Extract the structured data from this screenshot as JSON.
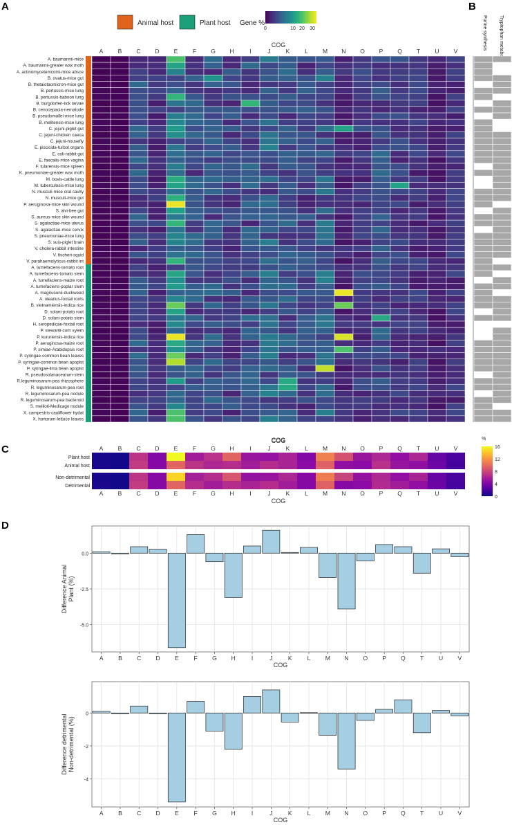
{
  "panel_labels": {
    "a": "A",
    "b": "B",
    "c": "C",
    "d": "D"
  },
  "legend": {
    "animal_host": "Animal host",
    "plant_host": "Plant host",
    "animal_color": "#e0641a",
    "plant_color": "#1ba07b",
    "gene_pct_title": "Gene %",
    "gene_ticks": [
      "0",
      "10",
      "20",
      "30"
    ]
  },
  "panel_b_columns": [
    "Purine synthesis",
    "Tryptophan metabolism"
  ],
  "chart_data": [
    {
      "id": "A",
      "type": "heatmap",
      "xlabel": "COG",
      "legend_title": "Gene %",
      "colorscale": "viridis",
      "crange": [
        0,
        35
      ],
      "categories": [
        "A",
        "B",
        "C",
        "D",
        "E",
        "F",
        "G",
        "H",
        "I",
        "J",
        "K",
        "L",
        "M",
        "N",
        "O",
        "P",
        "Q",
        "T",
        "U",
        "V"
      ],
      "rows": [
        "A. baumannii-mice",
        "A. baumannii-greater wax moth",
        "A. actinomycetemcomi-mice absce",
        "B. ovatus-mice gut",
        "B. thetaiotaomicron-mice gut",
        "B. pertussis-mice lung",
        "B. pertussis-baboon lung",
        "B. burgdorferi-tick larvae",
        "B. cenocepacia-nematode",
        "B. pseudomallei-mice lung",
        "B. melitensis-mice lung",
        "C. jejuni-piglet gut",
        "C. jejuni-chicken caeca",
        "C. jejuni-housefly",
        "E. piscicida-turbot organs",
        "E. coli-rabbit gut",
        "E. faecalis-mice vagina",
        "F. tularensis-mice spleen",
        "K. pneumoniae-greater wax moth",
        "M. bovis-cattle lung",
        "M. tuberculosis-mice lung",
        "N. musculi-mice oral cavity",
        "N. musculi-mice gut",
        "P. aeruginosa-mice skin wound",
        "S. alvi-bee gut",
        "S. aureus-mice skin wound",
        "S. agalactiae-mice uterus",
        "S. agalactiae-mice cervix",
        "S. pneumoniae-mice lung",
        "S. suis-piglet brain",
        "V. cholera-rabbit intestine",
        "V. fischeri-squid",
        "V. parahaemolyticus-rabbit int",
        "A. tumefaciens-tomato root",
        "A. tumefaciens-tomato stem",
        "A. tumefaciens-maize root",
        "A. tumefaciens-poplar stem",
        "A. magnusonii-duckweed",
        "A. olearius-foxtail roots",
        "B. vietnamiensis-indica rice",
        "D. solani-potato root",
        "D. solani-potato stem",
        "H. seropedicae-foxtail root",
        "P. stewartii-corn xylem",
        "P. kururiensis-indica rice",
        "P. aeruginosa-maize root",
        "P. simiae-Arabidopsis root",
        "P. syringae-common bean leaves",
        "P. syringae-common bean apoplst",
        "P. syringae-lima bean apoplst",
        "R. pseudosolanacearum-stem",
        "R.leguminosarum-pea rhizosphere",
        "R. leguminosarum-pea root",
        "R. leguminosarum-pea nodule",
        "R. leguminosarum-pea bacteroid",
        "S. meliloti-Medicago nodule",
        "X. campestris-cauliflower hydat",
        "X. hortorum-lettuce leaves"
      ],
      "row_groups": [
        {
          "name": "Animal host",
          "count": 33
        },
        {
          "name": "Plant host",
          "count": 25
        }
      ],
      "base_profile": [
        0.5,
        0.3,
        8,
        5,
        15,
        8,
        8,
        7,
        8,
        10,
        8,
        7,
        10,
        4,
        6,
        8,
        6,
        5,
        3,
        5
      ],
      "highlights": [
        {
          "row": "P. aeruginosa-mice skin wound",
          "col": "E",
          "value": 34
        },
        {
          "row": "P. kururiensis-indica rice",
          "col": "E",
          "value": 34
        },
        {
          "row": "P. kururiensis-indica rice",
          "col": "N",
          "value": 33
        },
        {
          "row": "A. magnusonii-duckweed",
          "col": "N",
          "value": 34
        },
        {
          "row": "P. syringae-common bean apoplst",
          "col": "E",
          "value": 31
        },
        {
          "row": "P. syringae-lima bean apoplst",
          "col": "M",
          "value": 32
        },
        {
          "row": "B. vietnamiensis-indica rice",
          "col": "E",
          "value": 27
        },
        {
          "row": "B. vietnamiensis-indica rice",
          "col": "N",
          "value": 27
        },
        {
          "row": "A. baumannii-mice",
          "col": "E",
          "value": 25
        },
        {
          "row": "P. syringae-common bean leaves",
          "col": "E",
          "value": 27
        },
        {
          "row": "X. campestris-cauliflower hydat",
          "col": "E",
          "value": 25
        },
        {
          "row": "X. hortorum-lettuce leaves",
          "col": "E",
          "value": 25
        },
        {
          "row": "P. simiae-Arabidopsis root",
          "col": "N",
          "value": 25
        },
        {
          "row": "B. burgdorferi-tick larvae",
          "col": "I",
          "value": 23
        },
        {
          "row": "D. solani-potato stem",
          "col": "P",
          "value": 21
        },
        {
          "row": "R.leguminosarum-pea rhizosphere",
          "col": "K",
          "value": 21
        },
        {
          "row": "R. leguminosarum-pea root",
          "col": "K",
          "value": 21
        },
        {
          "row": "C. jejuni-piglet gut",
          "col": "N",
          "value": 20
        },
        {
          "row": "M. tuberculosis-mice lung",
          "col": "Q",
          "value": 20
        },
        {
          "row": "B. ovatus-mice gut",
          "col": "G",
          "value": 18
        }
      ]
    },
    {
      "id": "C",
      "type": "heatmap",
      "xlabel": "COG",
      "legend_title": "%",
      "colorscale": "plasma",
      "crange": [
        0,
        16
      ],
      "legend_ticks": [
        0,
        4,
        8,
        12,
        16
      ],
      "categories": [
        "A",
        "B",
        "C",
        "D",
        "E",
        "F",
        "G",
        "H",
        "I",
        "J",
        "K",
        "L",
        "M",
        "N",
        "O",
        "P",
        "Q",
        "T",
        "U",
        "V"
      ],
      "rows": [
        "Plant host",
        "Animal host",
        "Non-detrimental",
        "Detrimental"
      ],
      "values": [
        [
          0.3,
          0.2,
          7.0,
          4.2,
          16.0,
          5.6,
          6.8,
          9.6,
          5.2,
          5.0,
          6.0,
          4.2,
          11.0,
          8.6,
          5.2,
          6.2,
          4.8,
          6.2,
          3.0,
          2.0
        ],
        [
          0.4,
          0.2,
          7.4,
          4.4,
          9.6,
          7.0,
          6.2,
          6.6,
          5.6,
          6.6,
          6.0,
          4.6,
          9.4,
          4.8,
          4.6,
          6.8,
          5.2,
          4.8,
          3.3,
          1.8
        ],
        [
          0.3,
          0.2,
          7.0,
          4.3,
          14.6,
          5.8,
          6.6,
          8.8,
          5.0,
          5.2,
          6.2,
          4.4,
          10.8,
          7.8,
          5.0,
          6.2,
          4.8,
          6.0,
          3.0,
          2.0
        ],
        [
          0.4,
          0.2,
          7.4,
          4.3,
          9.6,
          6.6,
          5.6,
          6.6,
          6.0,
          6.6,
          5.6,
          4.4,
          9.4,
          4.4,
          4.6,
          6.4,
          5.6,
          4.8,
          3.2,
          1.8
        ]
      ]
    },
    {
      "id": "D1",
      "type": "bar",
      "categories": [
        "A",
        "B",
        "C",
        "D",
        "E",
        "F",
        "G",
        "H",
        "I",
        "J",
        "K",
        "L",
        "M",
        "N",
        "O",
        "P",
        "Q",
        "T",
        "U",
        "V"
      ],
      "values": [
        0.1,
        -0.05,
        0.45,
        0.28,
        -6.6,
        1.3,
        -0.6,
        -3.1,
        0.5,
        1.6,
        0.05,
        0.4,
        -1.7,
        -3.9,
        -0.55,
        0.6,
        0.45,
        -1.4,
        0.3,
        -0.25
      ],
      "xlabel": "COG",
      "ylabel": "Difference Animal Plant (%)",
      "ylabel_lines": [
        "Difference Animal",
        "Plant (%)"
      ],
      "ylim": [
        -6.9,
        1.9
      ],
      "yticks": [
        0.0,
        -2.5,
        -5.0
      ],
      "ytick_labels": [
        "0.0",
        "-2.5",
        "-5.0"
      ],
      "bar_color": "#a6cee3"
    },
    {
      "id": "D2",
      "type": "bar",
      "categories": [
        "A",
        "B",
        "C",
        "D",
        "E",
        "F",
        "G",
        "H",
        "I",
        "J",
        "K",
        "L",
        "M",
        "N",
        "O",
        "P",
        "Q",
        "T",
        "U",
        "V"
      ],
      "values": [
        0.1,
        -0.05,
        0.42,
        -0.05,
        -5.4,
        0.7,
        -1.1,
        -2.2,
        1.0,
        1.4,
        -0.55,
        0.02,
        -1.35,
        -3.4,
        -0.45,
        0.22,
        0.8,
        -1.2,
        0.15,
        -0.18
      ],
      "xlabel": "COG",
      "ylabel": "Difference detrimental Non-detrimental (%)",
      "ylabel_lines": [
        "Difference detrimental",
        "Non-detrimental (%)"
      ],
      "ylim": [
        -5.7,
        1.9
      ],
      "yticks": [
        0,
        -2,
        -4
      ],
      "ytick_labels": [
        "0",
        "-2",
        "-4"
      ],
      "bar_color": "#a6cee3"
    }
  ]
}
